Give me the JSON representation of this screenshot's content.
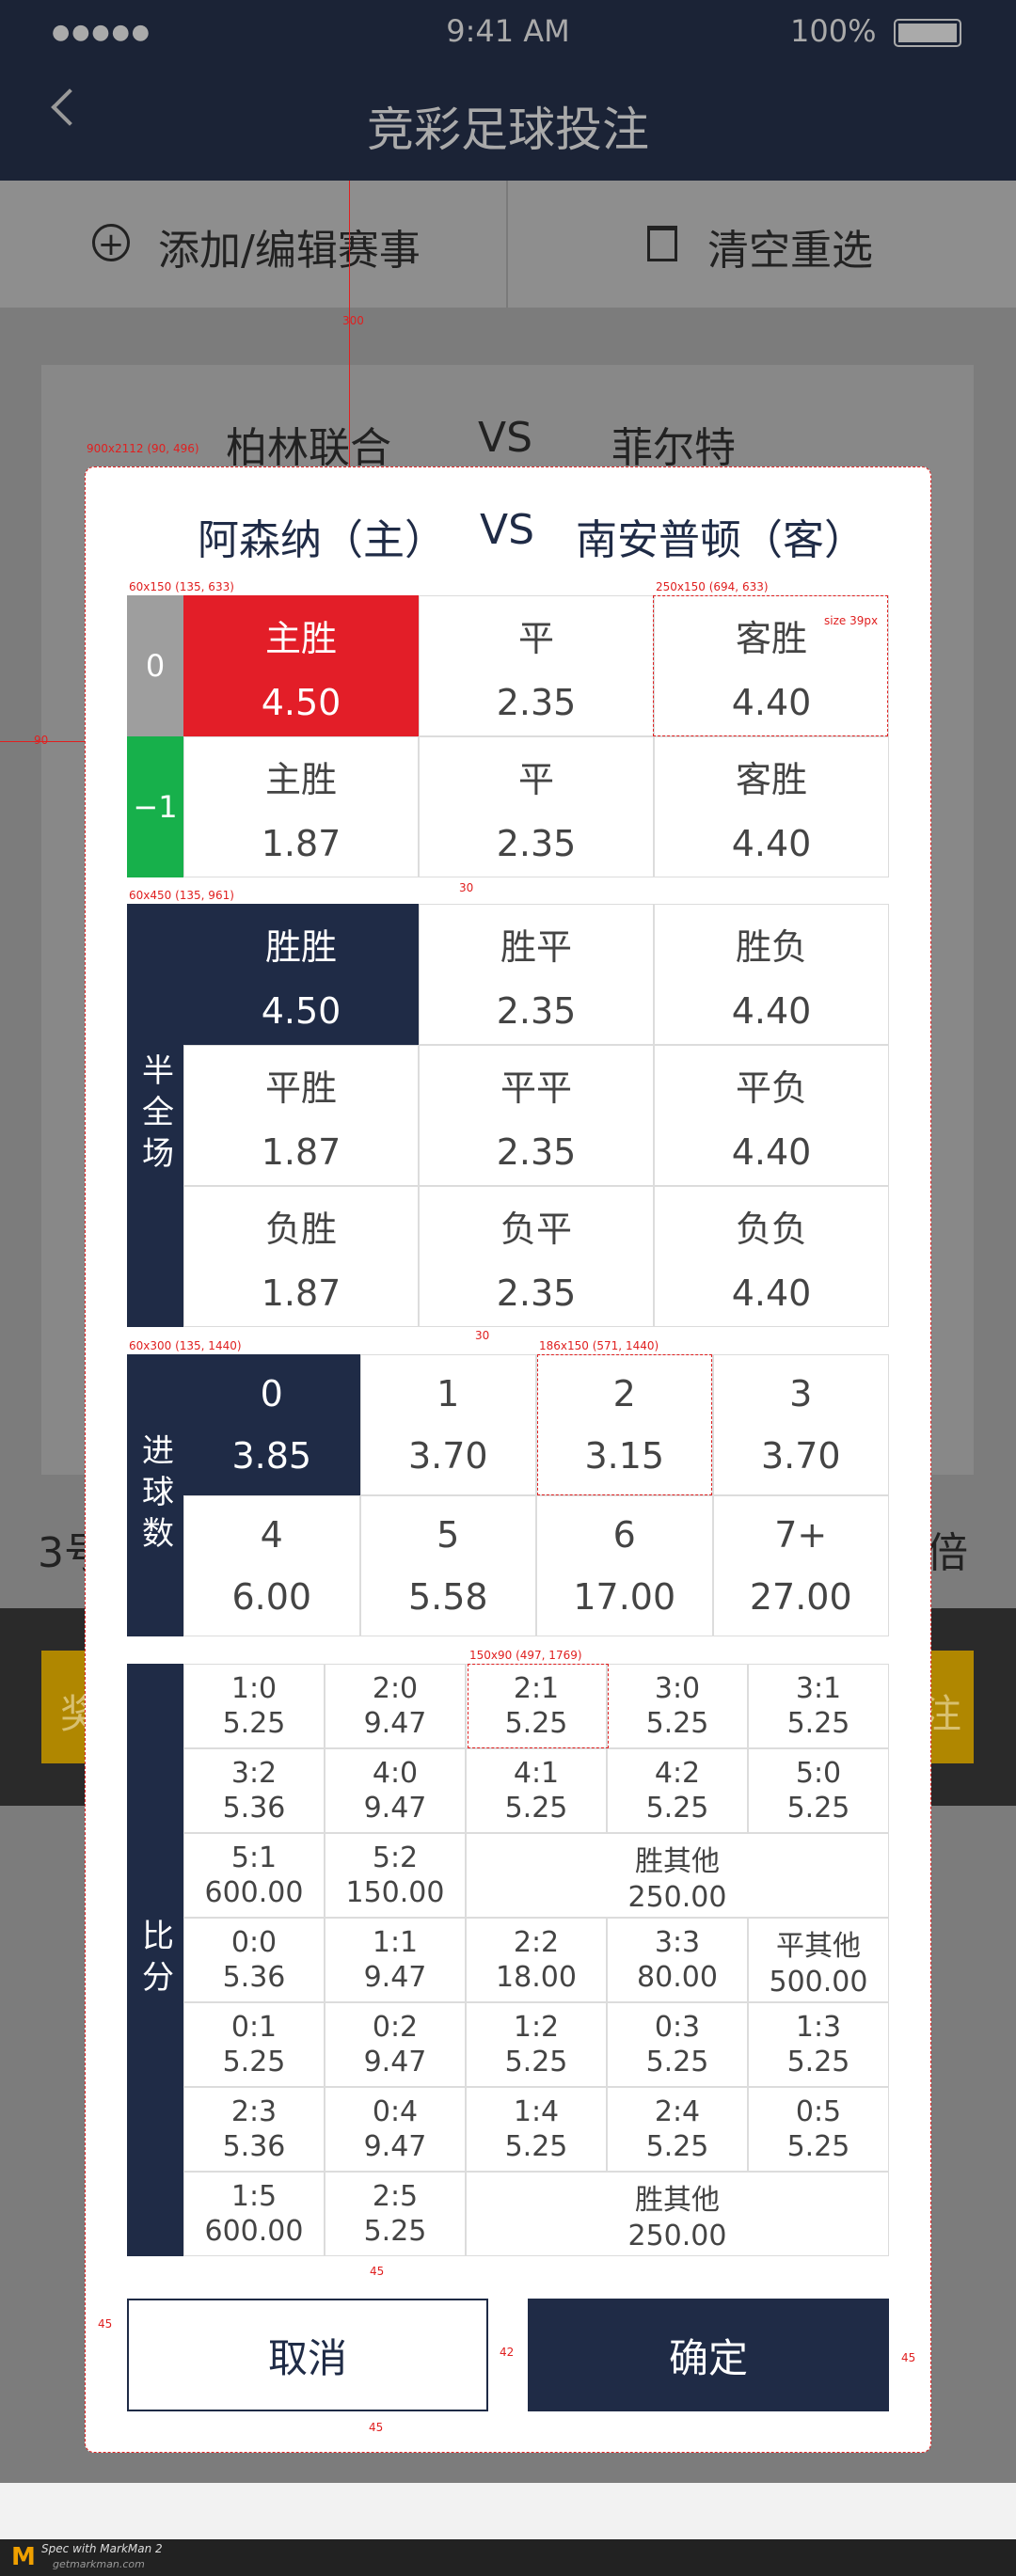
{
  "status": {
    "time": "9:41 AM",
    "battery": "100%"
  },
  "nav": {
    "title": "竞彩足球投注"
  },
  "toolbar": {
    "add": "添加/编辑赛事",
    "clear": "清空重选"
  },
  "background": {
    "home": "柏林联合",
    "vs": "VS",
    "away": "菲尔特",
    "left": "3号",
    "right": "倍",
    "button_left": "奖",
    "button_right": "注"
  },
  "modal": {
    "title": {
      "home": "阿森纳（主）",
      "vs": "VS",
      "away": "南安普顿（客）"
    },
    "handicap": [
      {
        "label": "0",
        "cells": [
          {
            "name": "主胜",
            "odds": "4.50",
            "selected": true
          },
          {
            "name": "平",
            "odds": "2.35"
          },
          {
            "name": "客胜",
            "odds": "4.40"
          }
        ]
      },
      {
        "label": "−1",
        "cells": [
          {
            "name": "主胜",
            "odds": "1.87"
          },
          {
            "name": "平",
            "odds": "2.35"
          },
          {
            "name": "客胜",
            "odds": "4.40"
          }
        ]
      }
    ],
    "halffull": {
      "label": "半全场",
      "rows": [
        [
          {
            "name": "胜胜",
            "odds": "4.50",
            "selected": true
          },
          {
            "name": "胜平",
            "odds": "2.35"
          },
          {
            "name": "胜负",
            "odds": "4.40"
          }
        ],
        [
          {
            "name": "平胜",
            "odds": "1.87"
          },
          {
            "name": "平平",
            "odds": "2.35"
          },
          {
            "name": "平负",
            "odds": "4.40"
          }
        ],
        [
          {
            "name": "负胜",
            "odds": "1.87"
          },
          {
            "name": "负平",
            "odds": "2.35"
          },
          {
            "name": "负负",
            "odds": "4.40"
          }
        ]
      ]
    },
    "goals": {
      "label": "进球数",
      "rows": [
        [
          {
            "name": "0",
            "odds": "3.85",
            "selected": true
          },
          {
            "name": "1",
            "odds": "3.70"
          },
          {
            "name": "2",
            "odds": "3.15"
          },
          {
            "name": "3",
            "odds": "3.70"
          }
        ],
        [
          {
            "name": "4",
            "odds": "6.00"
          },
          {
            "name": "5",
            "odds": "5.58"
          },
          {
            "name": "6",
            "odds": "17.00"
          },
          {
            "name": "7+",
            "odds": "27.00"
          }
        ]
      ]
    },
    "score": {
      "label": "比分",
      "rows": [
        [
          {
            "name": "1:0",
            "odds": "5.25"
          },
          {
            "name": "2:0",
            "odds": "9.47"
          },
          {
            "name": "2:1",
            "odds": "5.25"
          },
          {
            "name": "3:0",
            "odds": "5.25"
          },
          {
            "name": "3:1",
            "odds": "5.25"
          }
        ],
        [
          {
            "name": "3:2",
            "odds": "5.36"
          },
          {
            "name": "4:0",
            "odds": "9.47"
          },
          {
            "name": "4:1",
            "odds": "5.25"
          },
          {
            "name": "4:2",
            "odds": "5.25"
          },
          {
            "name": "5:0",
            "odds": "5.25"
          }
        ],
        [
          {
            "name": "5:1",
            "odds": "600.00"
          },
          {
            "name": "5:2",
            "odds": "150.00"
          },
          {
            "name": "胜其他",
            "odds": "250.00"
          }
        ],
        [
          {
            "name": "0:0",
            "odds": "5.36"
          },
          {
            "name": "1:1",
            "odds": "9.47"
          },
          {
            "name": "2:2",
            "odds": "18.00"
          },
          {
            "name": "3:3",
            "odds": "80.00"
          },
          {
            "name": "平其他",
            "odds": "500.00"
          }
        ],
        [
          {
            "name": "0:1",
            "odds": "5.25"
          },
          {
            "name": "0:2",
            "odds": "9.47"
          },
          {
            "name": "1:2",
            "odds": "5.25"
          },
          {
            "name": "0:3",
            "odds": "5.25"
          },
          {
            "name": "1:3",
            "odds": "5.25"
          }
        ],
        [
          {
            "name": "2:3",
            "odds": "5.36"
          },
          {
            "name": "0:4",
            "odds": "9.47"
          },
          {
            "name": "1:4",
            "odds": "5.25"
          },
          {
            "name": "2:4",
            "odds": "5.25"
          },
          {
            "name": "0:5",
            "odds": "5.25"
          }
        ],
        [
          {
            "name": "1:5",
            "odds": "600.00"
          },
          {
            "name": "2:5",
            "odds": "5.25"
          },
          {
            "name": "胜其他",
            "odds": "250.00"
          }
        ]
      ]
    },
    "buttons": {
      "cancel": "取消",
      "confirm": "确定"
    }
  },
  "annotations": [
    "300",
    "900x2112 (90, 496)",
    "60x150 (135, 633)",
    "250x150 (694, 633)",
    "size 39px",
    "90",
    "30",
    "60x450 (135, 961)",
    "30",
    "60x300 (135, 1440)",
    "186x150 (571, 1440)",
    "150x90 (497, 1769)",
    "45",
    "45",
    "42",
    "45",
    "45"
  ],
  "footer": {
    "brand": "Spec with MarkMan 2",
    "site": "getmarkman.com"
  }
}
